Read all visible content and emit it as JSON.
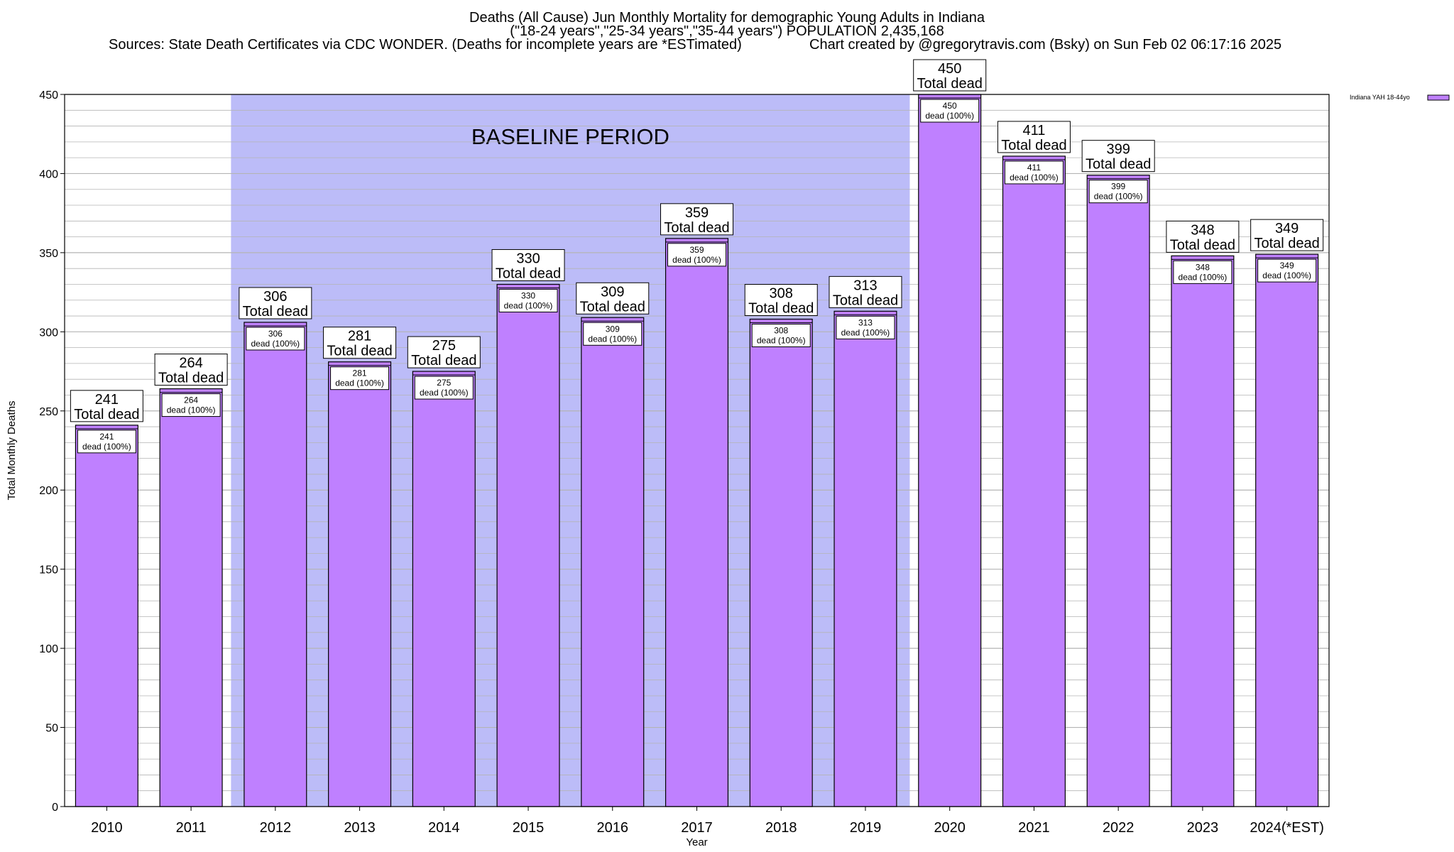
{
  "titles": {
    "line1": "Deaths (All Cause) Jun Monthly Mortality for demographic Young Adults in Indiana",
    "line2": "(\"18-24 years\",\"25-34 years\",\"35-44 years\") POPULATION 2,435,168",
    "sources": "Sources: State Death Certificates via CDC WONDER. (Deaths for incomplete years are *ESTimated)",
    "credit": "Chart created by @gregorytravis.com (Bsky) on Sun Feb 02 06:17:16 2025"
  },
  "chart_data": {
    "type": "bar",
    "xlabel": "Year",
    "ylabel": "Total Monthly Deaths",
    "ylim": [
      0,
      450
    ],
    "yticks": [
      0,
      50,
      100,
      150,
      200,
      250,
      300,
      350,
      400,
      450
    ],
    "grid": true,
    "legend": {
      "position": "top-right",
      "label": "Indiana YAH 18-44yo"
    },
    "baseline": {
      "label": "BASELINE PERIOD",
      "from": "2012",
      "to": "2019"
    },
    "total_label": "Total dead",
    "inner_label_suffix": "dead (100%)",
    "categories": [
      "2010",
      "2011",
      "2012",
      "2013",
      "2014",
      "2015",
      "2016",
      "2017",
      "2018",
      "2019",
      "2020",
      "2021",
      "2022",
      "2023",
      "2024(*EST)"
    ],
    "series": [
      {
        "name": "Indiana YAH 18-44yo",
        "values": [
          241,
          264,
          306,
          281,
          275,
          330,
          309,
          359,
          308,
          313,
          450,
          411,
          399,
          348,
          349
        ]
      }
    ]
  },
  "colors": {
    "bar": "#bf80ff",
    "baseline": "#bcbcf8",
    "grid": "#b4b4b4"
  }
}
